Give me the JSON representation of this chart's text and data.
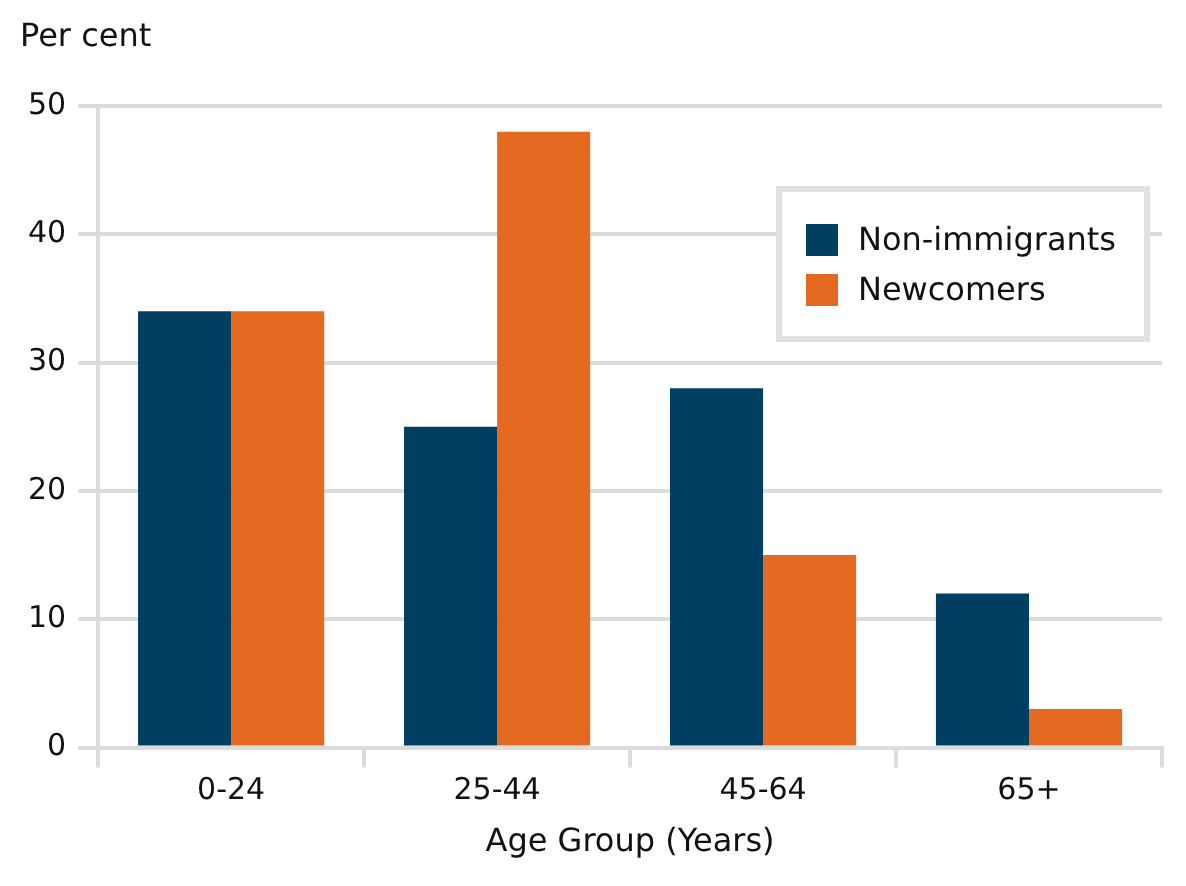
{
  "chart_data": {
    "type": "bar",
    "ylabel": "Per cent",
    "xlabel": "Age Group (Years)",
    "categories": [
      "0-24",
      "25-44",
      "45-64",
      "65+"
    ],
    "series": [
      {
        "name": "Non-immigrants",
        "color": "#003f62",
        "values": [
          34,
          25,
          28,
          12
        ]
      },
      {
        "name": "Newcomers",
        "color": "#e46a21",
        "values": [
          34,
          48,
          15,
          3
        ]
      }
    ],
    "ylim": [
      0,
      50
    ],
    "yticks": [
      0,
      10,
      20,
      30,
      40,
      50
    ],
    "grid": "y",
    "legend": "top right"
  }
}
